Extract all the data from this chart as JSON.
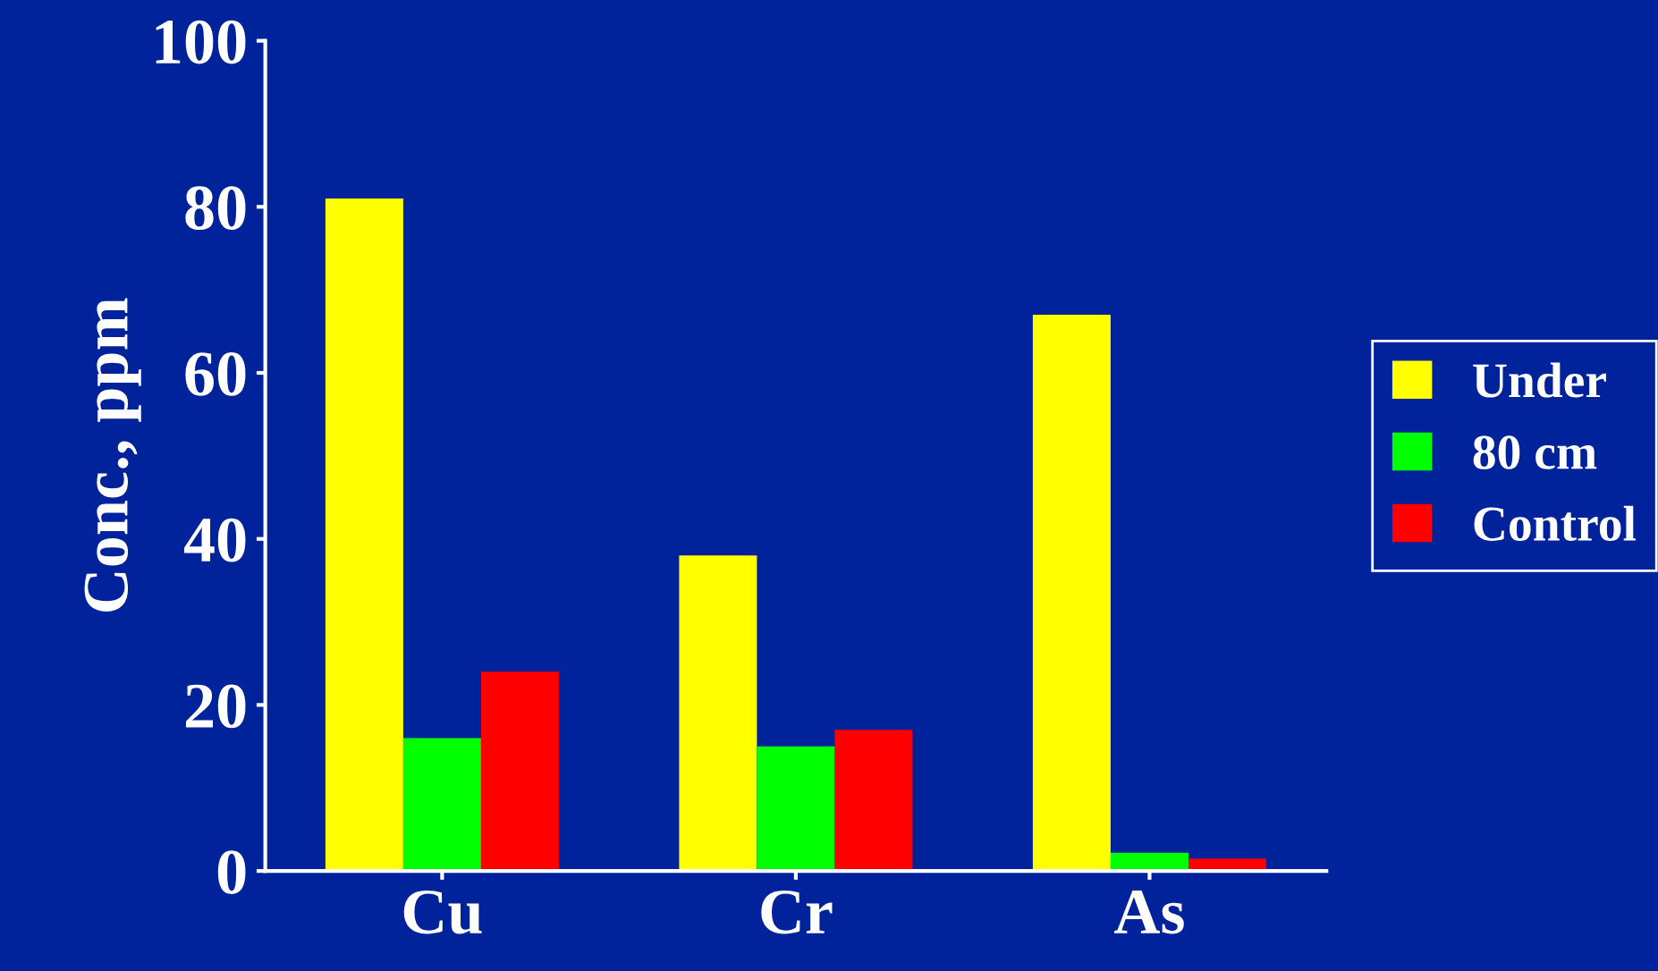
{
  "chart_data": {
    "type": "bar",
    "ylabel": "Conc., ppm",
    "categories": [
      "Cu",
      "Cr",
      "As"
    ],
    "series": [
      {
        "name": "Under",
        "color": "#ffff00",
        "values": [
          81,
          38,
          67
        ]
      },
      {
        "name": "80 cm",
        "color": "#00ff00",
        "values": [
          16,
          15,
          2.2
        ]
      },
      {
        "name": "Control",
        "color": "#ff0000",
        "values": [
          24,
          17,
          1.5
        ]
      }
    ],
    "ylim": [
      0,
      100
    ],
    "yticks": [
      0,
      20,
      40,
      60,
      80,
      100
    ],
    "grid": false,
    "legend": "right"
  }
}
